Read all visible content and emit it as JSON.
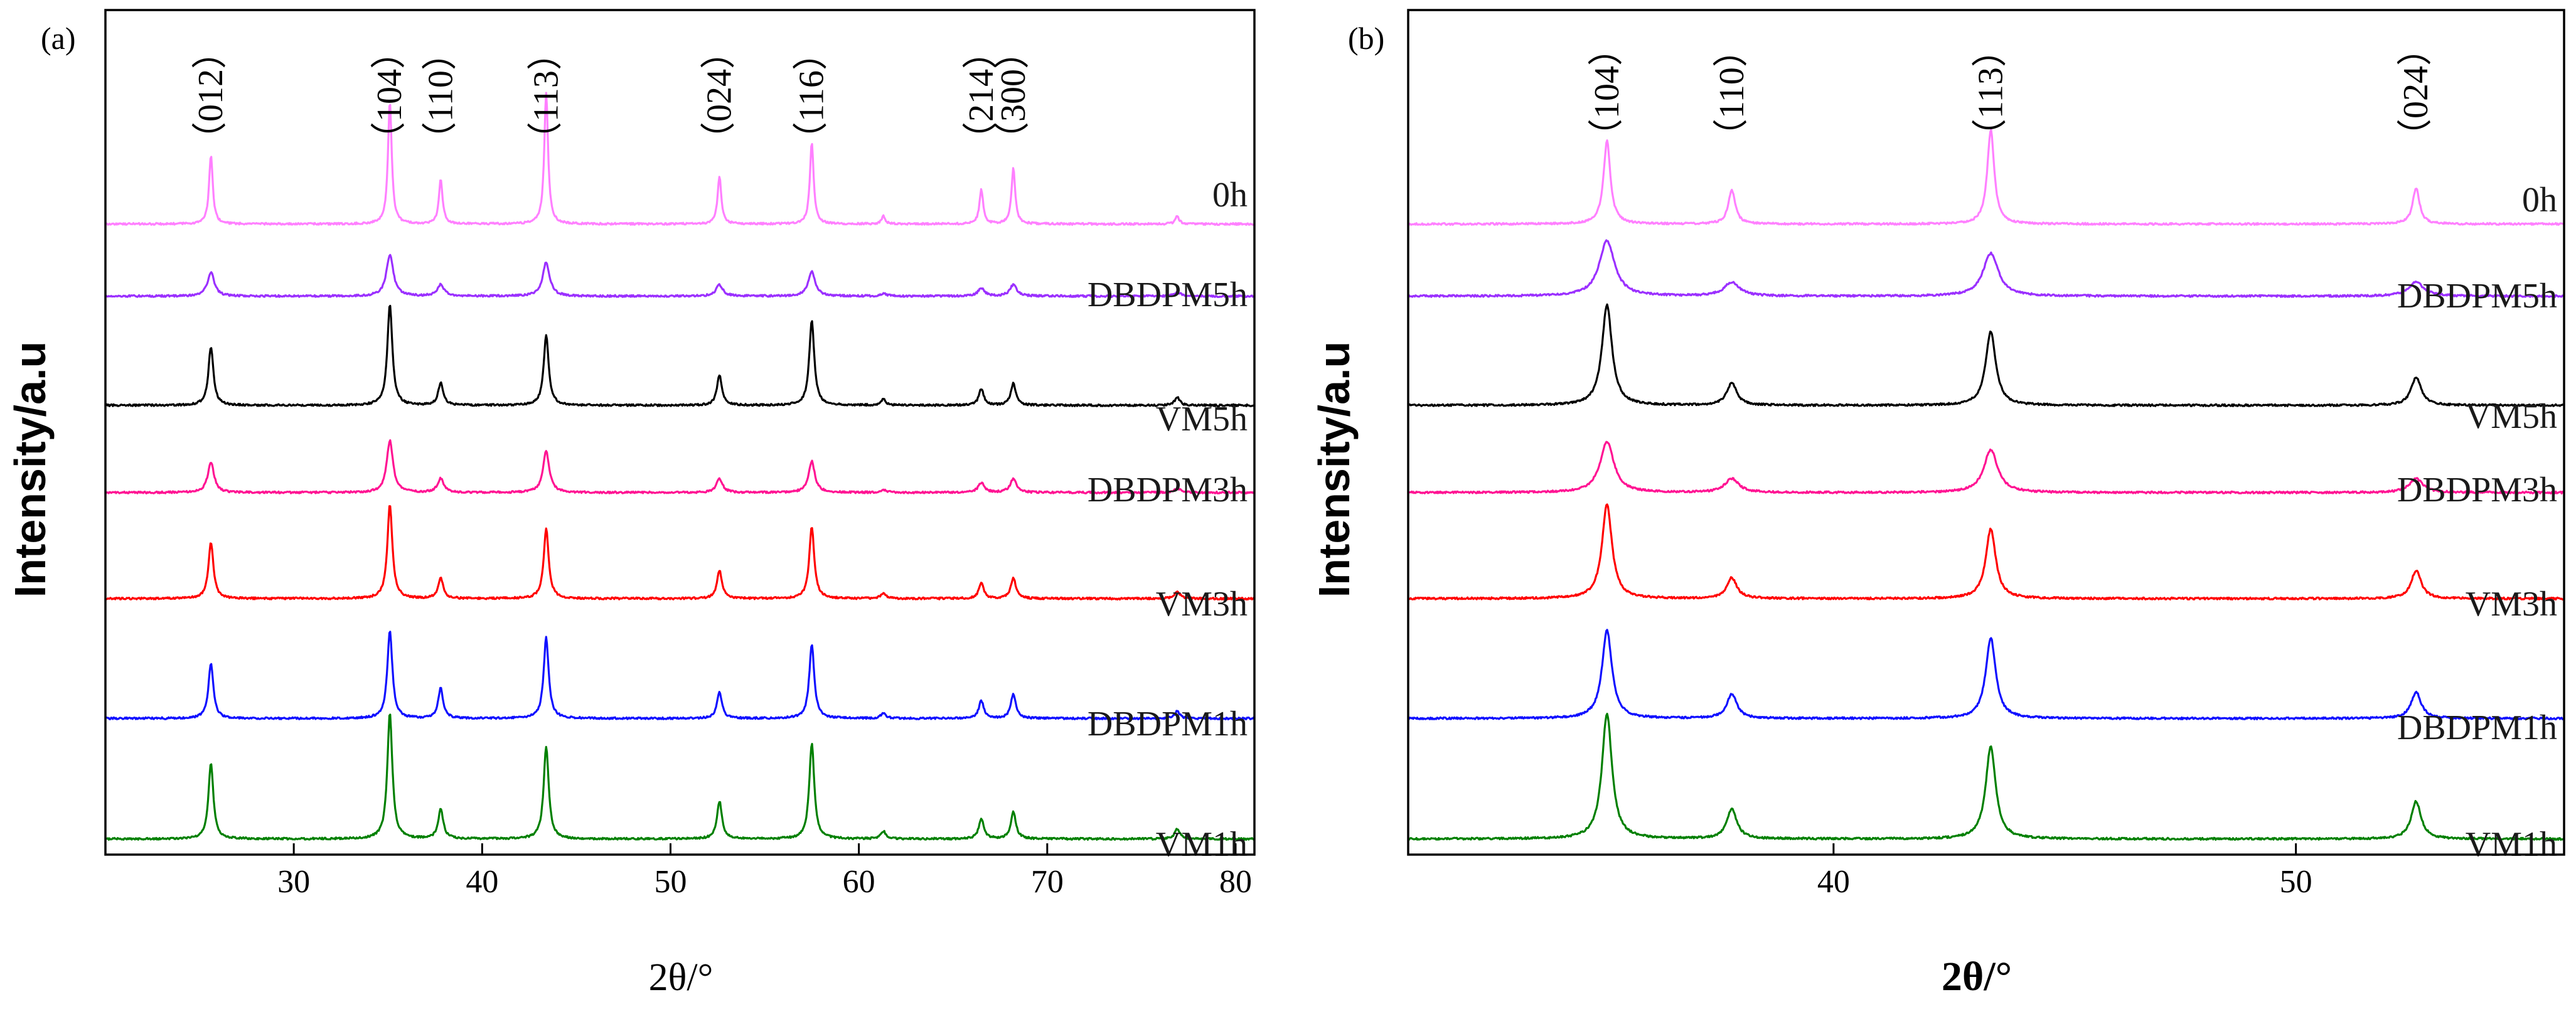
{
  "chart_data": [
    {
      "panel": "(a)",
      "type": "line",
      "title": "",
      "xlabel": "2θ/°",
      "ylabel": "Intensity/a.u",
      "xlim": [
        20,
        81
      ],
      "xticks": [
        30,
        40,
        50,
        60,
        70,
        80
      ],
      "xtick_labels": [
        "30",
        "40",
        "50",
        "60",
        "70",
        "80"
      ],
      "grid": false,
      "peak_labels": [
        {
          "label": "（012）",
          "x": 25.6
        },
        {
          "label": "（104）",
          "x": 35.1
        },
        {
          "label": "（110）",
          "x": 37.8
        },
        {
          "label": "（113）",
          "x": 43.4
        },
        {
          "label": "（024）",
          "x": 52.6
        },
        {
          "label": "（116）",
          "x": 57.5
        },
        {
          "label": "（214）",
          "x": 66.5
        },
        {
          "label": "（300）",
          "x": 68.2
        }
      ],
      "series": [
        {
          "name": "0h",
          "color": "#ff80ff",
          "peaks": [
            [
              25.6,
              0.52
            ],
            [
              35.1,
              0.93
            ],
            [
              37.8,
              0.34
            ],
            [
              43.4,
              1.0
            ],
            [
              52.6,
              0.36
            ],
            [
              57.5,
              0.62
            ],
            [
              61.3,
              0.06
            ],
            [
              66.5,
              0.26
            ],
            [
              68.2,
              0.42
            ],
            [
              76.9,
              0.06
            ]
          ],
          "width": 0.12
        },
        {
          "name": "DBDPM5h",
          "color": "#9b30ff",
          "peaks": [
            [
              25.6,
              0.38
            ],
            [
              35.1,
              0.66
            ],
            [
              37.8,
              0.18
            ],
            [
              43.4,
              0.54
            ],
            [
              52.6,
              0.18
            ],
            [
              57.5,
              0.4
            ],
            [
              61.3,
              0.04
            ],
            [
              66.5,
              0.12
            ],
            [
              68.2,
              0.18
            ],
            [
              76.9,
              0.06
            ]
          ],
          "width": 0.22
        },
        {
          "name": "VM5h",
          "color": "#000000",
          "peaks": [
            [
              25.6,
              0.58
            ],
            [
              35.1,
              1.0
            ],
            [
              37.8,
              0.22
            ],
            [
              43.4,
              0.7
            ],
            [
              52.6,
              0.3
            ],
            [
              57.5,
              0.84
            ],
            [
              61.3,
              0.06
            ],
            [
              66.5,
              0.16
            ],
            [
              68.2,
              0.22
            ],
            [
              76.9,
              0.08
            ]
          ],
          "width": 0.16
        },
        {
          "name": "DBDPM3h",
          "color": "#ff1493",
          "peaks": [
            [
              25.6,
              0.44
            ],
            [
              35.1,
              0.75
            ],
            [
              37.8,
              0.2
            ],
            [
              43.4,
              0.6
            ],
            [
              52.6,
              0.2
            ],
            [
              57.5,
              0.45
            ],
            [
              61.3,
              0.04
            ],
            [
              66.5,
              0.14
            ],
            [
              68.2,
              0.2
            ],
            [
              76.9,
              0.06
            ]
          ],
          "width": 0.2
        },
        {
          "name": "VM3h",
          "color": "#ff0000",
          "peaks": [
            [
              25.6,
              0.6
            ],
            [
              35.1,
              1.0
            ],
            [
              37.8,
              0.22
            ],
            [
              43.4,
              0.74
            ],
            [
              52.6,
              0.3
            ],
            [
              57.5,
              0.76
            ],
            [
              61.3,
              0.06
            ],
            [
              66.5,
              0.16
            ],
            [
              68.2,
              0.22
            ],
            [
              76.9,
              0.08
            ]
          ],
          "width": 0.16
        },
        {
          "name": "DBDPM1h",
          "color": "#1010ff",
          "peaks": [
            [
              25.6,
              0.62
            ],
            [
              35.1,
              1.0
            ],
            [
              37.8,
              0.34
            ],
            [
              43.4,
              0.92
            ],
            [
              52.6,
              0.3
            ],
            [
              57.5,
              0.84
            ],
            [
              61.3,
              0.06
            ],
            [
              66.5,
              0.2
            ],
            [
              68.2,
              0.28
            ],
            [
              76.9,
              0.08
            ]
          ],
          "width": 0.16
        },
        {
          "name": "VM1h",
          "color": "#008000",
          "peaks": [
            [
              25.6,
              0.6
            ],
            [
              35.1,
              1.0
            ],
            [
              37.8,
              0.24
            ],
            [
              43.4,
              0.74
            ],
            [
              52.6,
              0.3
            ],
            [
              57.5,
              0.76
            ],
            [
              61.3,
              0.06
            ],
            [
              66.5,
              0.16
            ],
            [
              68.2,
              0.22
            ],
            [
              76.9,
              0.08
            ]
          ],
          "width": 0.16
        }
      ]
    },
    {
      "panel": "(b)",
      "type": "line",
      "title": "",
      "xlabel": "2θ/°",
      "ylabel": "Intensity/a.u",
      "xlim": [
        30.8,
        55.8
      ],
      "xticks": [
        40,
        50
      ],
      "xtick_labels": [
        "40",
        "50"
      ],
      "grid": false,
      "peak_labels": [
        {
          "label": "（104）",
          "x": 35.1
        },
        {
          "label": "（110）",
          "x": 37.8
        },
        {
          "label": "（113）",
          "x": 43.4
        },
        {
          "label": "（024）",
          "x": 52.6
        }
      ],
      "series": [
        {
          "name": "0h",
          "color": "#ff80ff",
          "peaks": [
            [
              35.1,
              0.88
            ],
            [
              37.8,
              0.36
            ],
            [
              43.4,
              1.0
            ],
            [
              52.6,
              0.38
            ]
          ],
          "width": 0.09
        },
        {
          "name": "DBDPM5h",
          "color": "#9b30ff",
          "peaks": [
            [
              35.1,
              0.8
            ],
            [
              37.8,
              0.2
            ],
            [
              43.4,
              0.62
            ],
            [
              52.6,
              0.2
            ]
          ],
          "width": 0.2
        },
        {
          "name": "VM5h",
          "color": "#000000",
          "peaks": [
            [
              35.1,
              1.0
            ],
            [
              37.8,
              0.22
            ],
            [
              43.4,
              0.74
            ],
            [
              52.6,
              0.28
            ]
          ],
          "width": 0.13
        },
        {
          "name": "DBDPM3h",
          "color": "#ff1493",
          "peaks": [
            [
              35.1,
              0.74
            ],
            [
              37.8,
              0.2
            ],
            [
              43.4,
              0.62
            ],
            [
              52.6,
              0.2
            ]
          ],
          "width": 0.18
        },
        {
          "name": "VM3h",
          "color": "#ff0000",
          "peaks": [
            [
              35.1,
              1.0
            ],
            [
              37.8,
              0.22
            ],
            [
              43.4,
              0.74
            ],
            [
              52.6,
              0.3
            ]
          ],
          "width": 0.13
        },
        {
          "name": "DBDPM1h",
          "color": "#1010ff",
          "peaks": [
            [
              35.1,
              1.0
            ],
            [
              37.8,
              0.28
            ],
            [
              43.4,
              0.92
            ],
            [
              52.6,
              0.3
            ]
          ],
          "width": 0.13
        },
        {
          "name": "VM1h",
          "color": "#008000",
          "peaks": [
            [
              35.1,
              1.0
            ],
            [
              37.8,
              0.24
            ],
            [
              43.4,
              0.74
            ],
            [
              52.6,
              0.3
            ]
          ],
          "width": 0.13
        }
      ]
    }
  ]
}
